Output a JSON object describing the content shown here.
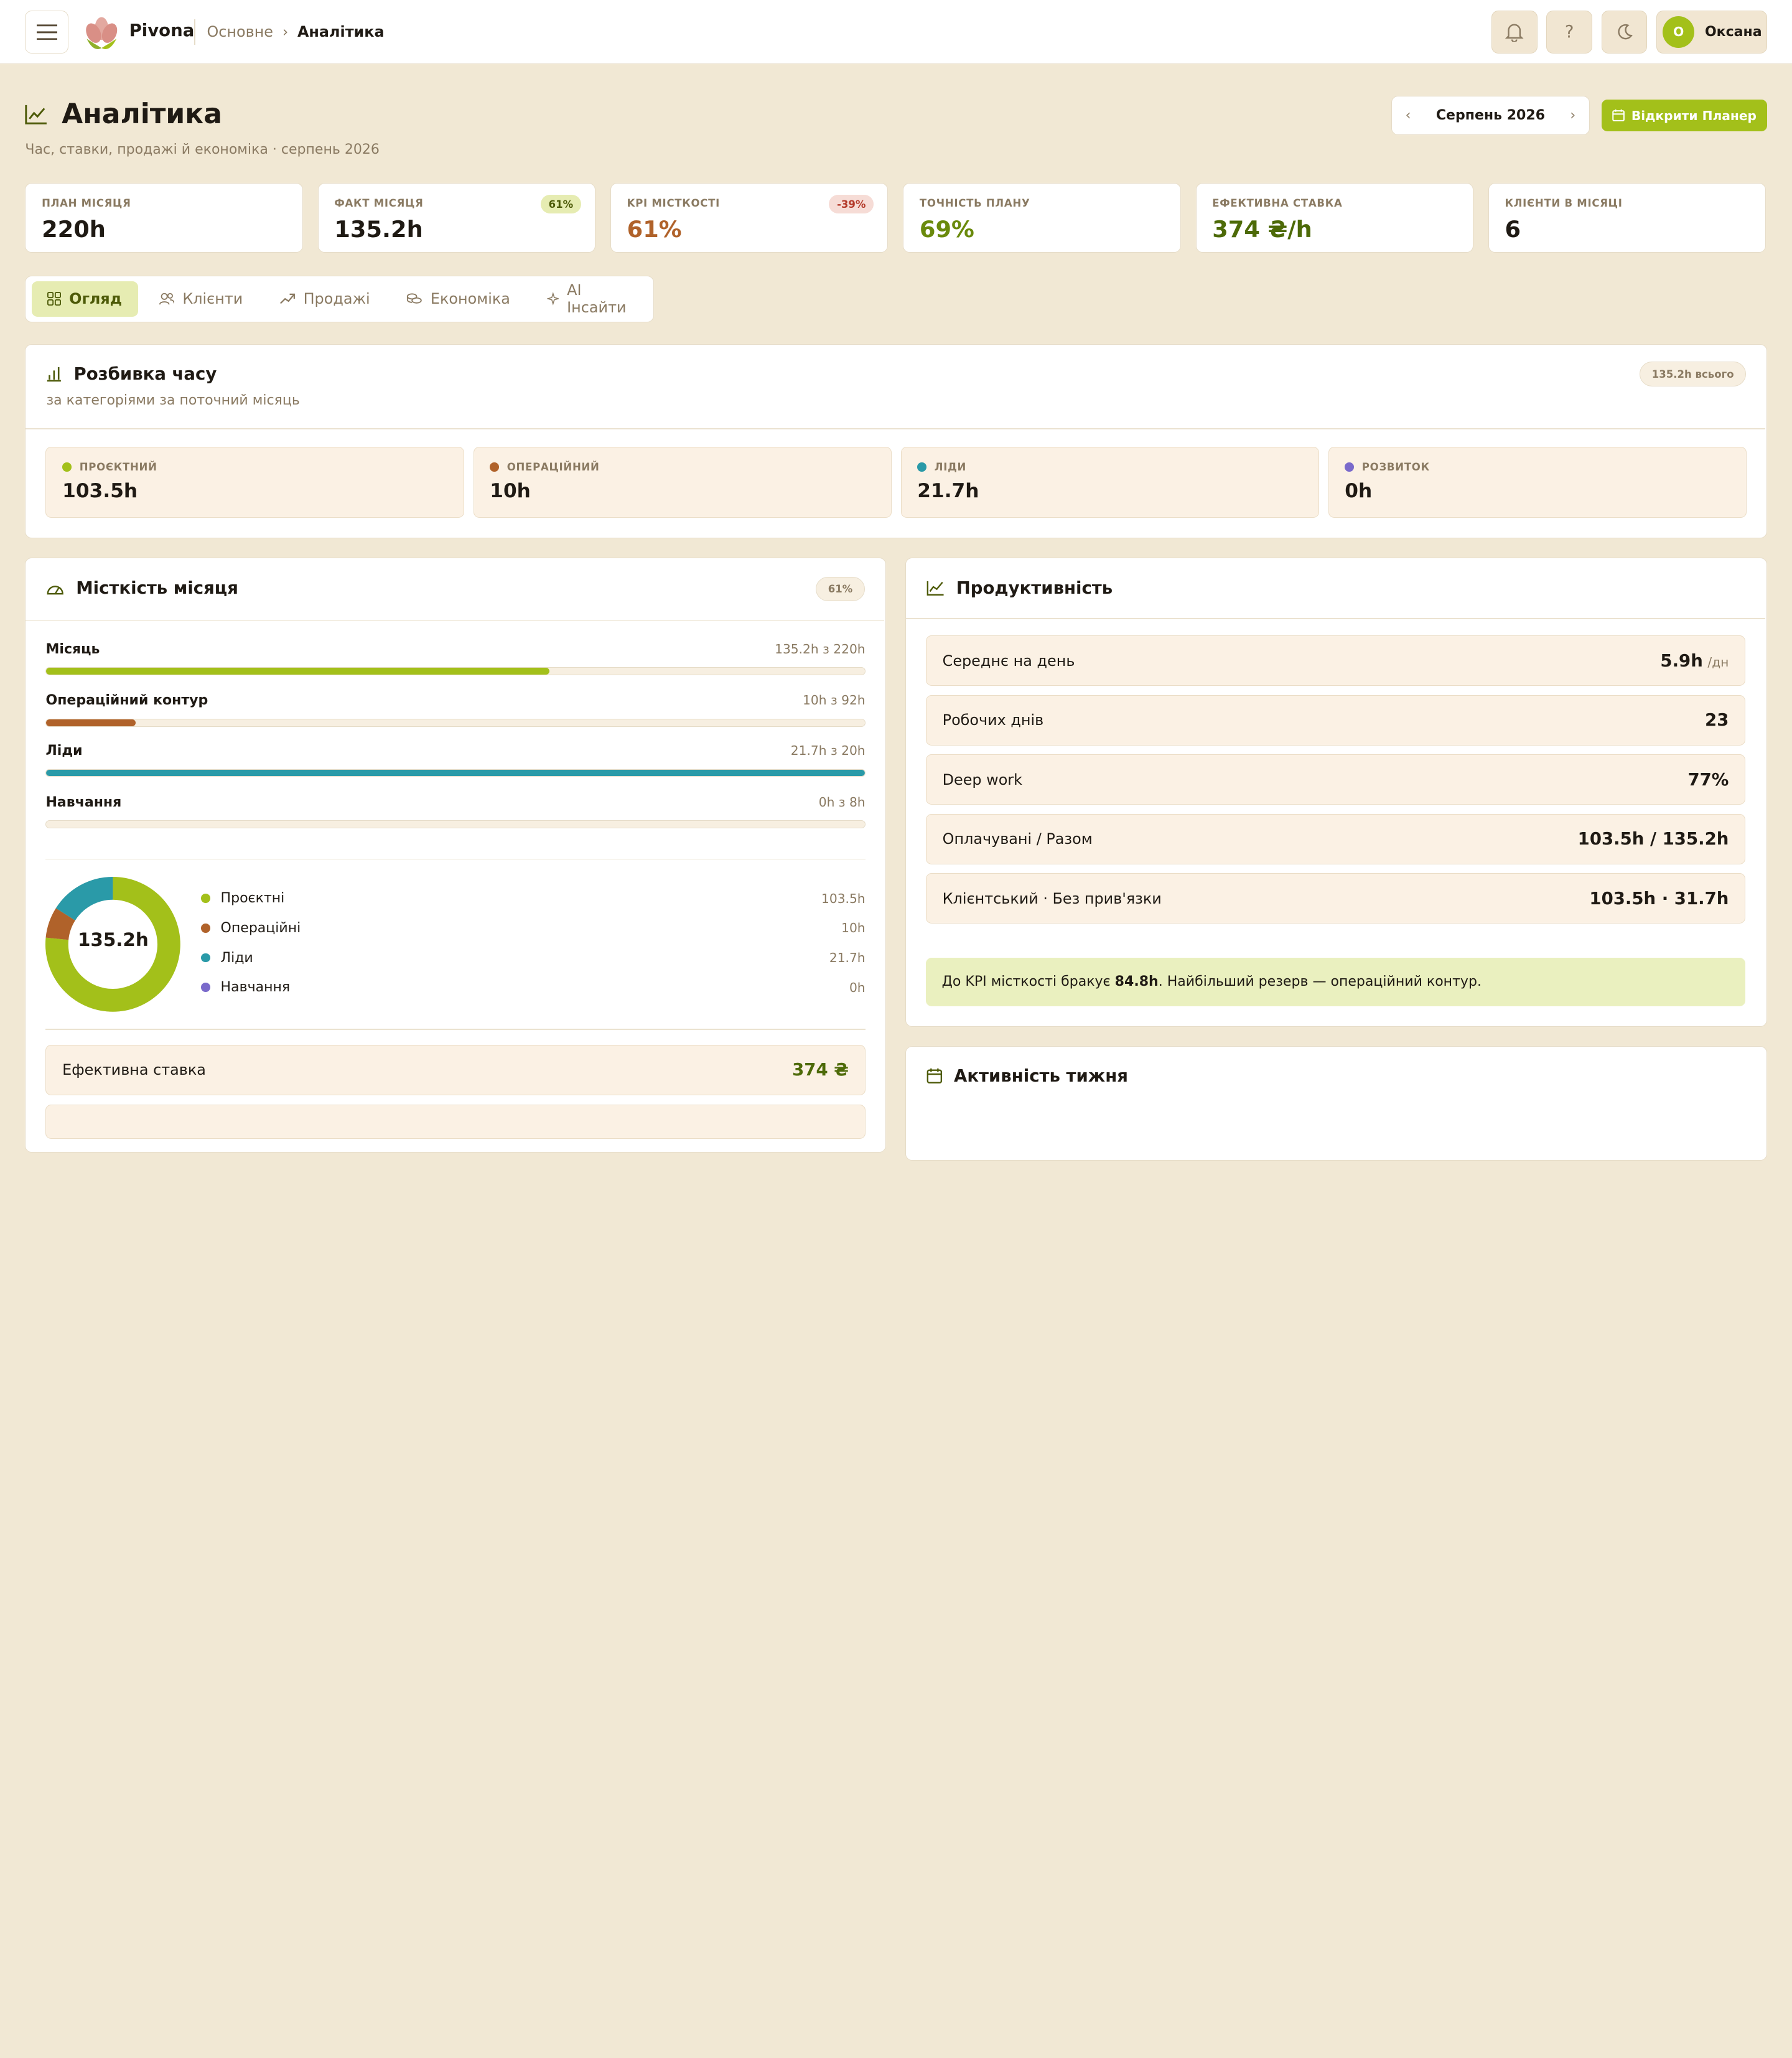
{
  "topbar": {
    "brand": "Pivona",
    "breadcrumb": [
      "Основне",
      "Аналітика"
    ],
    "user_initial": "О",
    "user_name": "Оксана",
    "help_label": "?"
  },
  "page": {
    "title": "Аналітика",
    "subtitle": "Час, ставки, продажі й економіка · серпень 2026",
    "month": "Серпень 2026",
    "open_planner": "Відкрити Планер"
  },
  "kpis": [
    {
      "label": "ПЛАН МІСЯЦЯ",
      "value": "220h",
      "color": "#1f1a14"
    },
    {
      "label": "ФАКТ МІСЯЦЯ",
      "value": "135.2h",
      "pill": "61%",
      "color": "#1f1a14"
    },
    {
      "label": "KPI МІСТКОСТІ",
      "value": "61%",
      "pill": "-39%",
      "color": "#b0622a"
    },
    {
      "label": "ТОЧНІСТЬ ПЛАНУ",
      "value": "69%",
      "color": "#6a8a0c"
    },
    {
      "label": "ЕФЕКТИВНА СТАВКА",
      "value": "374 ₴/h",
      "color": "#4d6a08"
    },
    {
      "label": "КЛІЄНТИ В МІСЯЦІ",
      "value": "6",
      "color": "#1f1a14"
    }
  ],
  "tabs": [
    "Огляд",
    "Клієнти",
    "Продажі",
    "Економіка",
    "AI Інсайти"
  ],
  "breakdown": {
    "title": "Розбивка часу",
    "subtitle": "за категоріями за поточний місяць",
    "total": "135.2h всього",
    "cats": [
      {
        "label": "ПРОЄКТНИЙ",
        "value": "103.5h",
        "color": "#a3c01a"
      },
      {
        "label": "ОПЕРАЦІЙНИЙ",
        "value": "10h",
        "color": "#b0622a"
      },
      {
        "label": "ЛІДИ",
        "value": "21.7h",
        "color": "#2a9aa8"
      },
      {
        "label": "РОЗВИТОК",
        "value": "0h",
        "color": "#7a6acb"
      }
    ]
  },
  "capacity": {
    "title": "Місткість місяця",
    "badge": "61%",
    "bars": [
      {
        "name": "Місяць",
        "text": "135.2h з 220h",
        "fraction": 0.615,
        "color": "#a3c01a"
      },
      {
        "name": "Операційний контур",
        "text": "10h з 92h",
        "fraction": 0.109,
        "color": "#b0622a"
      },
      {
        "name": "Ліди",
        "text": "21.7h з 20h",
        "fraction": 1.0,
        "color": "#2a9aa8"
      },
      {
        "name": "Навчання",
        "text": "0h з 8h",
        "fraction": 0,
        "color": "#7a6acb"
      }
    ],
    "donut_center": "135.2h",
    "legend": [
      {
        "name": "Проєктні",
        "value": "103.5h",
        "hours": 103.5,
        "color": "#a3c01a"
      },
      {
        "name": "Операційні",
        "value": "10h",
        "hours": 10,
        "color": "#b0622a"
      },
      {
        "name": "Ліди",
        "value": "21.7h",
        "hours": 21.7,
        "color": "#2a9aa8"
      },
      {
        "name": "Навчання",
        "value": "0h",
        "hours": 0,
        "color": "#7a6acb"
      }
    ],
    "rate_label": "Ефективна ставка",
    "rate_value": "374 ₴"
  },
  "productivity": {
    "title": "Продуктивність",
    "rows": [
      {
        "label": "Середнє на день",
        "value": "5.9h",
        "unit": "/дн"
      },
      {
        "label": "Робочих днів",
        "value": "23"
      },
      {
        "label": "Deep work",
        "value": "77%"
      },
      {
        "label": "Оплачувані / Разом",
        "value": "103.5h / 135.2h"
      },
      {
        "label": "Клієнтський · Без прив'язки",
        "value": "103.5h · 31.7h"
      }
    ],
    "note_pre": "До KPI місткості бракує ",
    "note_bold": "84.8h",
    "note_post": ". Найбільший резерв — операційний контур."
  },
  "activity": {
    "title": "Активність тижня"
  }
}
